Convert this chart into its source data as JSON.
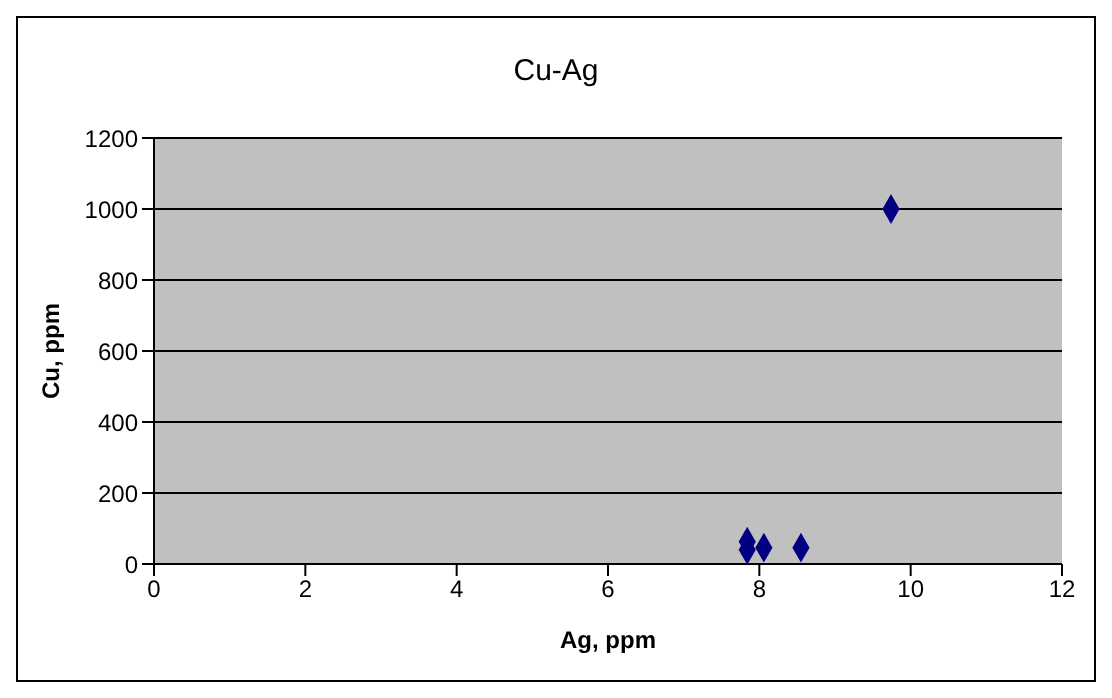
{
  "chart_data": {
    "type": "scatter",
    "title": "Cu-Ag",
    "xlabel": "Ag, ppm",
    "ylabel": "Cu, ppm",
    "series": [
      {
        "color": "#000080",
        "x": [
          7.84,
          7.84,
          8.06,
          8.55,
          9.74
        ],
        "values": [
          63,
          40,
          46,
          46,
          1000
        ]
      }
    ],
    "xlim": [
      0,
      12
    ],
    "xticks": [
      0,
      2,
      4,
      6,
      8,
      10,
      12
    ],
    "ylim": [
      0,
      1200
    ],
    "yticks": [
      0,
      200,
      400,
      600,
      800,
      1000,
      1200
    ],
    "grid": "y",
    "marker": "diamond"
  }
}
